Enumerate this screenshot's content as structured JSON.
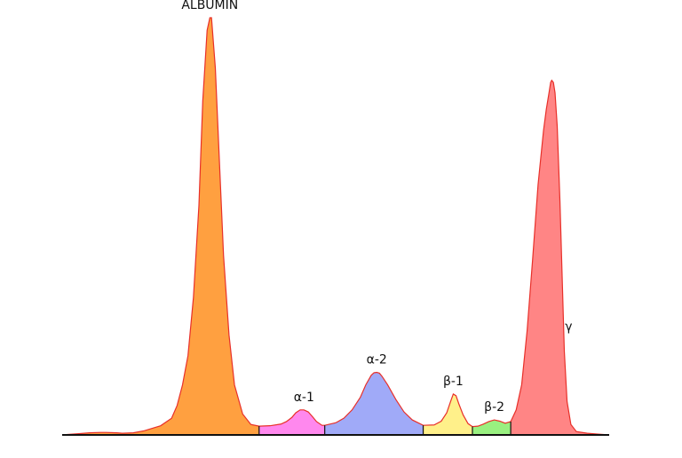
{
  "chart_data": {
    "type": "area",
    "title": "",
    "xlabel": "",
    "ylabel": "",
    "grid": false,
    "legend": "none",
    "x_range": [
      0,
      100
    ],
    "y_range": [
      0,
      100
    ],
    "outline_color": "#e8302a",
    "baseline_color": "#111111",
    "fractions": [
      {
        "name": "ALBUMIN",
        "label": "ALBUMIN",
        "color": "#ffa040",
        "start": 0,
        "end": 36,
        "peak_x": 27,
        "peak_y": 100,
        "label_anchor": "middle"
      },
      {
        "name": "alpha-1",
        "label": "α-1",
        "color": "#ff88ee",
        "start": 36,
        "end": 48,
        "peak_x": 44.2,
        "peak_y": 6,
        "label_anchor": "middle"
      },
      {
        "name": "alpha-2",
        "label": "α-2",
        "color": "#a0aaf8",
        "start": 48,
        "end": 66,
        "peak_x": 57.5,
        "peak_y": 15,
        "label_anchor": "middle"
      },
      {
        "name": "beta-1",
        "label": "β-1",
        "color": "#fff08a",
        "start": 66,
        "end": 75,
        "peak_x": 71.5,
        "peak_y": 9.8,
        "label_anchor": "middle"
      },
      {
        "name": "beta-2",
        "label": "β-2",
        "color": "#99f080",
        "start": 75,
        "end": 82,
        "peak_x": 79,
        "peak_y": 3.6,
        "label_anchor": "middle"
      },
      {
        "name": "gamma",
        "label": "γ",
        "color": "#ff8585",
        "start": 82,
        "end": 100,
        "peak_x": 89.5,
        "peak_y": 85,
        "label_anchor": "start"
      }
    ],
    "curve": {
      "x": [
        0,
        1,
        3,
        5,
        7,
        8,
        10,
        11,
        13,
        15,
        17,
        18,
        20,
        21,
        22,
        23,
        24,
        25,
        25.7,
        26.5,
        27,
        27.3,
        28,
        28.7,
        29.5,
        30.5,
        31.5,
        33,
        34.5,
        36,
        38,
        40,
        41,
        42,
        42.7,
        43.5,
        44.2,
        45,
        45.8,
        46.5,
        47.5,
        48,
        50,
        51.5,
        53,
        54.5,
        55.5,
        56.5,
        57,
        57.5,
        58,
        58.5,
        59.5,
        61,
        62.5,
        64,
        66,
        68,
        69.3,
        70.3,
        71,
        71.5,
        72,
        72.5,
        73.3,
        74.2,
        75,
        76,
        77,
        78,
        79,
        80,
        81,
        82,
        83,
        84,
        85,
        86,
        87,
        88,
        88.5,
        89,
        89.3,
        89.5,
        89.8,
        90.1,
        90.5,
        91,
        91.4,
        91.8,
        92.3,
        93,
        94,
        96,
        98,
        100
      ],
      "y": [
        0,
        0.1,
        0.3,
        0.5,
        0.6,
        0.6,
        0.5,
        0.4,
        0.5,
        1,
        1.8,
        2.2,
        4,
        7,
        12,
        19,
        33,
        55,
        80,
        97,
        100,
        100,
        88,
        67,
        43,
        24,
        12,
        5,
        2.5,
        2.1,
        2.2,
        2.6,
        3.2,
        4.2,
        5.3,
        6,
        6,
        5.5,
        4.3,
        3.2,
        2.3,
        2.3,
        2.9,
        4,
        6,
        9,
        12,
        14.3,
        14.9,
        15,
        14.8,
        14,
        12,
        8.5,
        5.5,
        3.6,
        2.3,
        2.4,
        3.3,
        5.3,
        8,
        9.8,
        9.4,
        7.5,
        4.8,
        2.7,
        2,
        2.1,
        2.6,
        3.2,
        3.6,
        3.3,
        2.8,
        3.2,
        6,
        12,
        25,
        42,
        60,
        73,
        78,
        82,
        84.5,
        85,
        84.5,
        82,
        74,
        56,
        38,
        20,
        8,
        2.5,
        0.8,
        0.4,
        0.2,
        0
      ]
    }
  }
}
